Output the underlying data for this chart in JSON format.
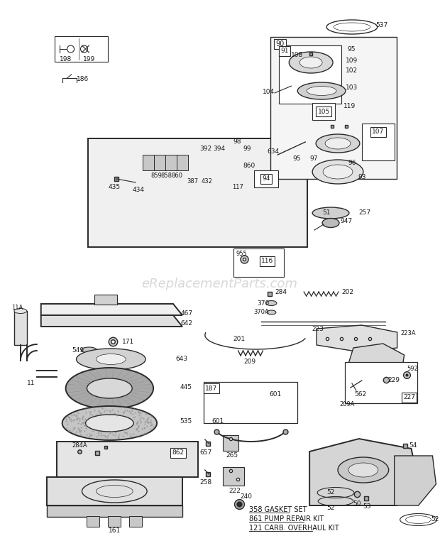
{
  "bg_color": "#ffffff",
  "watermark": "eReplacementParts.com",
  "diagram_color": "#2a2a2a",
  "bottom_label_kits": [
    {
      "number": "358",
      "text": "GASKET SET"
    },
    {
      "number": "861",
      "text": "PUMP REPAIR KIT"
    },
    {
      "number": "121",
      "text": "CARB. OVERHAUL KIT"
    }
  ]
}
